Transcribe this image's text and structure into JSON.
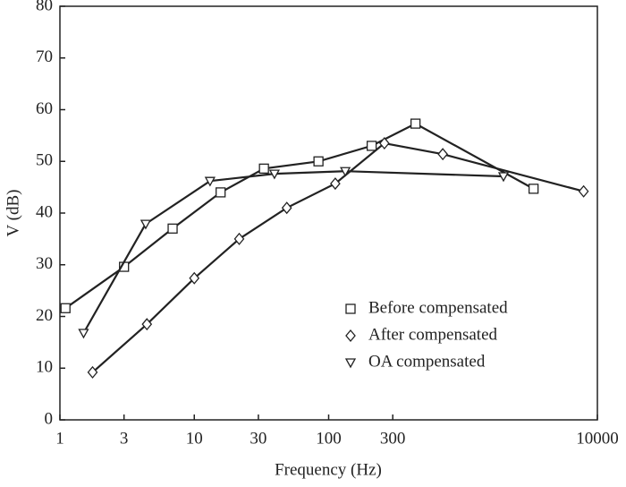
{
  "chart_data": {
    "type": "line",
    "xlabel": "Frequency (Hz)",
    "ylabel": "V (dB)",
    "xscale": "log",
    "xlim": [
      1,
      10000
    ],
    "xticks": [
      1,
      3,
      10,
      30,
      100,
      300,
      10000
    ],
    "ylim": [
      0,
      80
    ],
    "yticks": [
      0,
      10,
      20,
      30,
      40,
      50,
      60,
      70,
      80
    ],
    "legend": "lower right",
    "color": "#222222",
    "series": [
      {
        "name": "Before compensated",
        "marker": "square",
        "x": [
          1.1,
          3,
          6.9,
          15.7,
          33,
          84,
          209,
          443,
          3350
        ],
        "values": [
          21.6,
          29.6,
          37,
          44,
          48.6,
          50,
          53,
          57.3,
          44.7
        ]
      },
      {
        "name": "After compensated",
        "marker": "diamond",
        "x": [
          1.75,
          4.44,
          10,
          21.6,
          48.8,
          112,
          260,
          707,
          7900
        ],
        "values": [
          9.2,
          18.5,
          27.4,
          35,
          41,
          45.7,
          53.5,
          51.4,
          44.2
        ]
      },
      {
        "name": "OA compensated",
        "marker": "triangle-down",
        "x": [
          1.5,
          4.35,
          13.1,
          39.5,
          133,
          2000
        ],
        "values": [
          16.8,
          37.9,
          46.2,
          47.6,
          48.1,
          47.1
        ]
      }
    ]
  }
}
